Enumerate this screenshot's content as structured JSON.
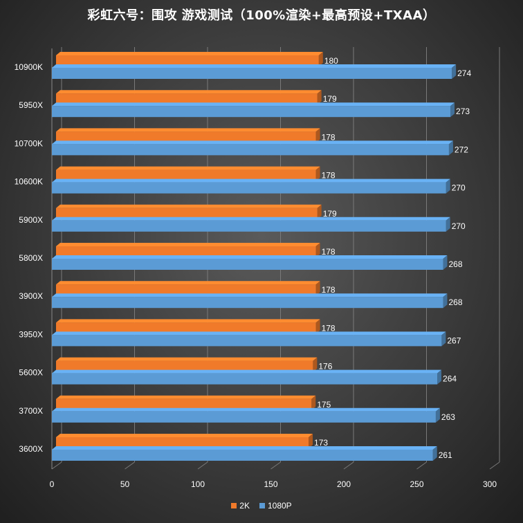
{
  "title": "彩虹六号：围攻 游戏测试（100%渲染+最高预设+TXAA）",
  "chart_data": {
    "type": "bar",
    "orientation": "horizontal",
    "style": "3d-clustered",
    "categories": [
      "10900K",
      "5950X",
      "10700K",
      "10600K",
      "5900X",
      "5800X",
      "3900X",
      "3950X",
      "5600X",
      "3700X",
      "3600X"
    ],
    "series": [
      {
        "name": "2K",
        "color": "#f07a2a",
        "values": [
          180,
          179,
          178,
          178,
          179,
          178,
          178,
          178,
          176,
          175,
          173
        ]
      },
      {
        "name": "1080P",
        "color": "#5b9bd5",
        "values": [
          274,
          273,
          272,
          270,
          270,
          268,
          268,
          267,
          264,
          263,
          261
        ]
      }
    ],
    "x_ticks": [
      "0",
      "50",
      "100",
      "150",
      "200",
      "250",
      "300"
    ],
    "xlim": [
      0,
      300
    ],
    "grid": true,
    "legend_position": "bottom"
  }
}
